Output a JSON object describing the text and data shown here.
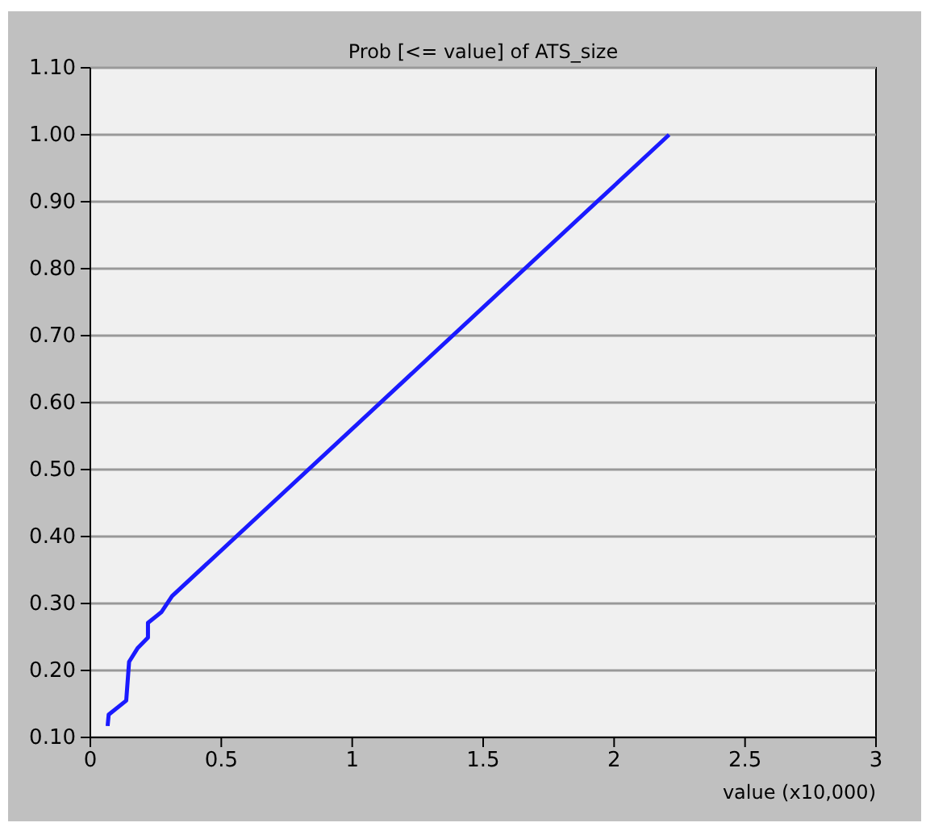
{
  "chart_data": {
    "type": "line",
    "title": "Prob [<= value] of ATS_size",
    "xlabel": "value (x10,000)",
    "x": [
      0.066,
      0.07,
      0.137,
      0.148,
      0.18,
      0.22,
      0.22,
      0.271,
      0.312,
      2.21
    ],
    "series": [
      {
        "color": "#1a1aff",
        "values": [
          0.117,
          0.134,
          0.155,
          0.213,
          0.233,
          0.249,
          0.271,
          0.287,
          0.311,
          1.0
        ]
      }
    ],
    "xlim": [
      0,
      3
    ],
    "xticks": [
      0,
      0.5,
      1,
      1.5,
      2,
      2.5,
      3
    ],
    "ylim": [
      0.1,
      1.1
    ],
    "yticks": [
      {
        "value": 0.1,
        "label": "0.10"
      },
      {
        "value": 0.2,
        "label": "0.20"
      },
      {
        "value": 0.3,
        "label": "0.30"
      },
      {
        "value": 0.4,
        "label": "0.40"
      },
      {
        "value": 0.5,
        "label": "0.50"
      },
      {
        "value": 0.6,
        "label": "0.60"
      },
      {
        "value": 0.7,
        "label": "0.70"
      },
      {
        "value": 0.8,
        "label": "0.80"
      },
      {
        "value": 0.9,
        "label": "0.90"
      },
      {
        "value": 1.0,
        "label": "1.00"
      },
      {
        "value": 1.1,
        "label": "1.10"
      }
    ],
    "grid": "y",
    "marker": "none",
    "line_style": "solid"
  }
}
